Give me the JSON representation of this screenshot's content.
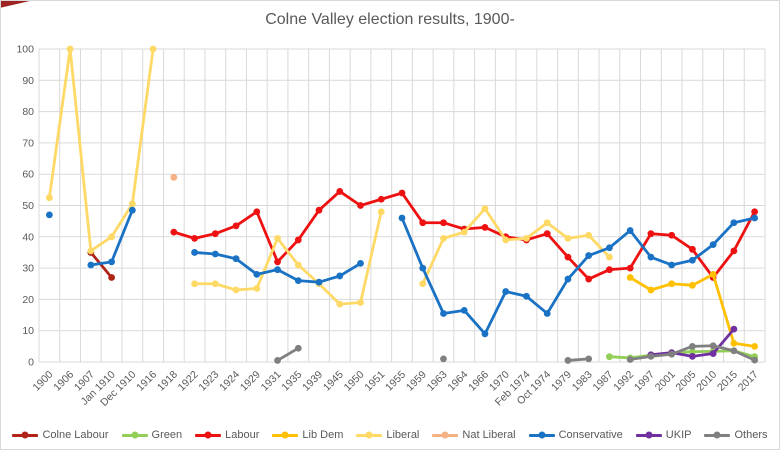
{
  "title": "Colne Valley election results, 1900-",
  "chart_data": {
    "type": "line",
    "title": "Colne Valley election results, 1900-",
    "grid": true,
    "legend_position": "bottom",
    "xlabel": "",
    "ylabel": "",
    "y_axis": {
      "min": 0,
      "max": 100,
      "step": 10
    },
    "y_ticks": [
      0,
      10,
      20,
      30,
      40,
      50,
      60,
      70,
      80,
      90,
      100
    ],
    "categories": [
      "1900",
      "1906",
      "1907",
      "Jan 1910",
      "Dec 1910",
      "1916",
      "1918",
      "1922",
      "1923",
      "1924",
      "1929",
      "1931",
      "1935",
      "1939",
      "1945",
      "1950",
      "1951",
      "1955",
      "1959",
      "1963",
      "1964",
      "1966",
      "1970",
      "Feb 1974",
      "Oct 1974",
      "1979",
      "1983",
      "1987",
      "1992",
      "1997",
      "2001",
      "2005",
      "2010",
      "2015",
      "2017"
    ],
    "series": [
      {
        "name": "Colne Labour",
        "color": "#b02418",
        "values": [
          null,
          null,
          35,
          27,
          null,
          null,
          null,
          null,
          null,
          null,
          null,
          null,
          null,
          null,
          null,
          null,
          null,
          null,
          null,
          null,
          null,
          null,
          null,
          null,
          null,
          null,
          null,
          null,
          null,
          null,
          null,
          null,
          null,
          null,
          null
        ]
      },
      {
        "name": "Green",
        "color": "#93cf57",
        "values": [
          null,
          null,
          null,
          null,
          null,
          null,
          null,
          null,
          null,
          null,
          null,
          null,
          null,
          null,
          null,
          null,
          null,
          null,
          null,
          null,
          null,
          null,
          null,
          null,
          null,
          null,
          null,
          1.7,
          1.3,
          2.2,
          2.9,
          3.3,
          3.4,
          3.6,
          1.7
        ]
      },
      {
        "name": "Labour",
        "color": "#ee1111",
        "values": [
          null,
          null,
          null,
          null,
          null,
          null,
          41.5,
          39.5,
          41,
          43.5,
          48,
          32,
          39,
          48.5,
          54.5,
          50,
          52,
          54,
          44.5,
          44.5,
          42.5,
          43,
          40,
          39,
          41,
          33.5,
          26.5,
          29.5,
          30,
          41,
          40.5,
          36,
          27,
          35.5,
          48
        ]
      },
      {
        "name": "Lib Dem",
        "color": "#ffc000",
        "values": [
          null,
          null,
          null,
          null,
          null,
          null,
          null,
          null,
          null,
          null,
          null,
          null,
          null,
          null,
          null,
          null,
          null,
          null,
          null,
          null,
          null,
          null,
          null,
          null,
          null,
          null,
          null,
          null,
          27,
          23,
          25,
          24.5,
          28,
          6,
          5
        ]
      },
      {
        "name": "Liberal",
        "color": "#ffd966",
        "values": [
          52.5,
          100,
          35.5,
          40,
          50.5,
          100,
          null,
          25,
          25,
          23,
          23.5,
          39.5,
          31,
          25,
          18.5,
          19,
          48,
          null,
          25,
          39.5,
          41.5,
          49,
          39,
          39.5,
          44.5,
          39.5,
          40.5,
          33.5,
          null,
          null,
          null,
          null,
          null,
          null,
          null
        ]
      },
      {
        "name": "Nat Liberal",
        "color": "#f4b183",
        "values": [
          null,
          null,
          null,
          null,
          null,
          null,
          59,
          null,
          null,
          null,
          null,
          null,
          null,
          null,
          null,
          null,
          null,
          null,
          null,
          null,
          null,
          null,
          null,
          null,
          null,
          null,
          null,
          null,
          null,
          null,
          null,
          null,
          null,
          null,
          null
        ]
      },
      {
        "name": "Conservative",
        "color": "#1a72c4",
        "values": [
          47,
          null,
          31,
          32,
          48.5,
          null,
          null,
          35,
          34.5,
          33,
          28,
          29.5,
          26,
          25.5,
          27.5,
          31.5,
          null,
          46,
          30,
          15.5,
          16.5,
          9,
          22.5,
          21,
          15.5,
          26.5,
          34,
          36.5,
          42,
          33.5,
          31,
          32.5,
          37.5,
          44.5,
          46
        ]
      },
      {
        "name": "UKIP",
        "color": "#7030a0",
        "values": [
          null,
          null,
          null,
          null,
          null,
          null,
          null,
          null,
          null,
          null,
          null,
          null,
          null,
          null,
          null,
          null,
          null,
          null,
          null,
          null,
          null,
          null,
          null,
          null,
          null,
          null,
          null,
          null,
          null,
          2.3,
          3,
          1.8,
          2.7,
          10.5,
          null
        ]
      },
      {
        "name": "Others",
        "color": "#808080",
        "values": [
          null,
          null,
          null,
          null,
          null,
          null,
          null,
          null,
          null,
          null,
          null,
          0.5,
          4.4,
          null,
          null,
          null,
          null,
          null,
          null,
          1,
          null,
          null,
          null,
          null,
          null,
          0.5,
          1,
          null,
          0.8,
          1.8,
          2.5,
          5,
          5.2,
          3.6,
          0.6
        ]
      }
    ]
  }
}
